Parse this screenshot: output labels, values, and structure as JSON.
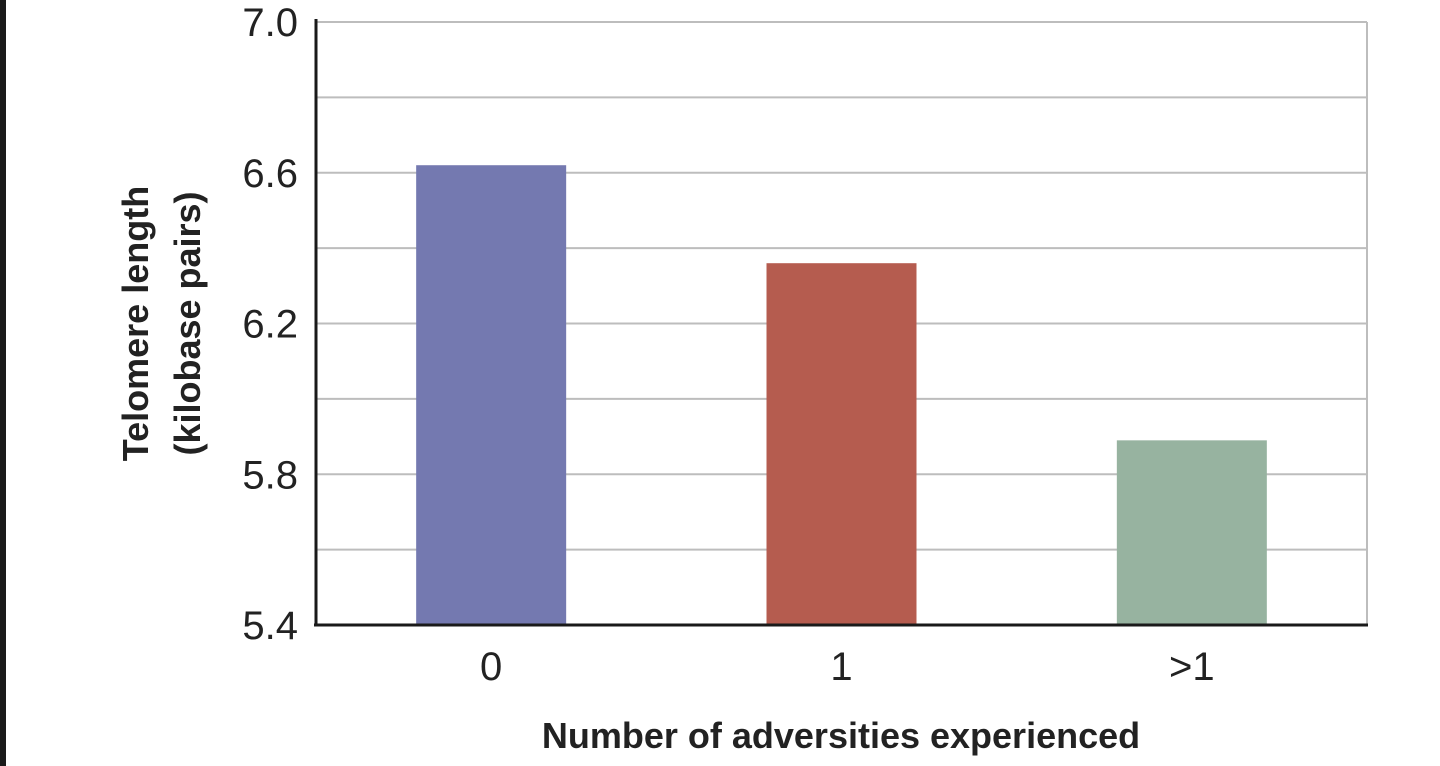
{
  "chart_data": {
    "type": "bar",
    "title": "",
    "xlabel": "Number of adversities experienced",
    "ylabel_lines": [
      "Telomere length",
      "(kilobase pairs)"
    ],
    "categories": [
      "0",
      "1",
      ">1"
    ],
    "values": [
      6.62,
      6.36,
      5.89
    ],
    "colors": [
      "#7479b0",
      "#b55c4f",
      "#97b3a0"
    ],
    "ylim": [
      5.4,
      7.0
    ],
    "yticks": [
      "5.4",
      "5.8",
      "6.2",
      "6.6",
      "7.0"
    ],
    "ytick_values": [
      5.4,
      5.8,
      6.2,
      6.6,
      7.0
    ],
    "minor_gridlines": [
      5.6,
      6.0,
      6.4,
      6.8
    ],
    "grid": true,
    "legend": "none"
  }
}
